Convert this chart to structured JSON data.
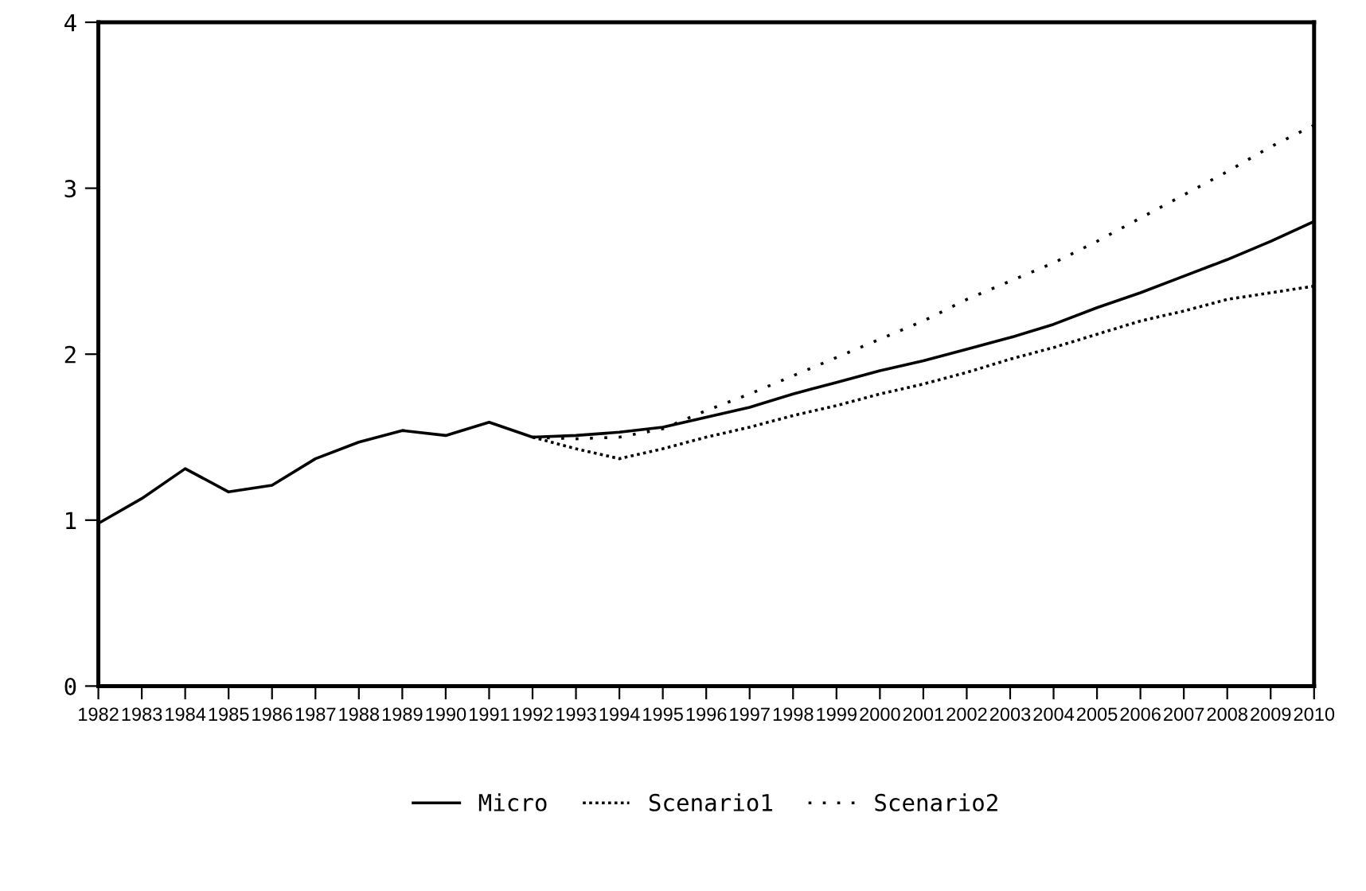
{
  "chart_data": {
    "type": "line",
    "x": [
      1982,
      1983,
      1984,
      1985,
      1986,
      1987,
      1988,
      1989,
      1990,
      1991,
      1992,
      1993,
      1994,
      1995,
      1996,
      1997,
      1998,
      1999,
      2000,
      2001,
      2002,
      2003,
      2004,
      2005,
      2006,
      2007,
      2008,
      2009,
      2010
    ],
    "series": [
      {
        "name": "Micro",
        "color": "#000000",
        "line_style": "solid",
        "values": [
          0.98,
          1.13,
          1.31,
          1.17,
          1.21,
          1.37,
          1.47,
          1.54,
          1.51,
          1.59,
          1.5,
          1.51,
          1.53,
          1.56,
          1.62,
          1.68,
          1.76,
          1.83,
          1.9,
          1.96,
          2.03,
          2.1,
          2.18,
          2.28,
          2.37,
          2.47,
          2.57,
          2.68,
          2.8
        ]
      },
      {
        "name": "Scenario1",
        "color": "#000000",
        "line_style": "dotted",
        "values": [
          null,
          null,
          null,
          null,
          null,
          null,
          null,
          null,
          null,
          null,
          1.5,
          1.43,
          1.37,
          1.43,
          1.5,
          1.56,
          1.63,
          1.69,
          1.76,
          1.82,
          1.89,
          1.97,
          2.04,
          2.12,
          2.2,
          2.26,
          2.33,
          2.37,
          2.41
        ]
      },
      {
        "name": "Scenario2",
        "color": "#000000",
        "line_style": "dotted",
        "values": [
          null,
          null,
          null,
          null,
          null,
          null,
          null,
          null,
          null,
          null,
          1.5,
          1.49,
          1.5,
          1.55,
          1.66,
          1.76,
          1.87,
          1.98,
          2.09,
          2.2,
          2.33,
          2.44,
          2.55,
          2.68,
          2.82,
          2.96,
          3.1,
          3.25,
          3.38
        ]
      }
    ],
    "xlim": [
      1982,
      2010
    ],
    "xticks": [
      1982,
      1983,
      1984,
      1985,
      1986,
      1987,
      1988,
      1989,
      1990,
      1991,
      1992,
      1993,
      1994,
      1995,
      1996,
      1997,
      1998,
      1999,
      2000,
      2001,
      2002,
      2003,
      2004,
      2005,
      2006,
      2007,
      2008,
      2009,
      2010
    ],
    "ylim": [
      0,
      4
    ],
    "yticks": [
      0,
      1,
      2,
      3,
      4
    ],
    "grid": false,
    "legend": "bottom",
    "marker": "none"
  }
}
